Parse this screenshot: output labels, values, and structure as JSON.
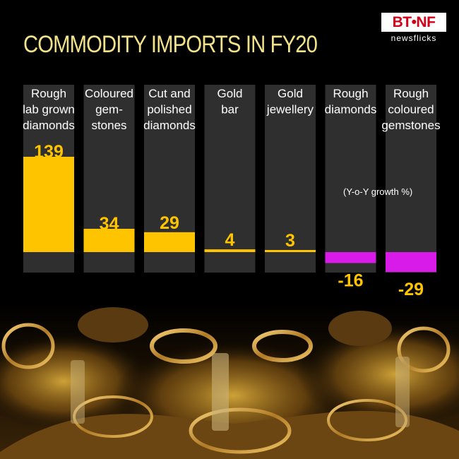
{
  "title": "COMMODITY IMPORTS IN FY20",
  "logo": {
    "brand": "BT•NF",
    "sub": "newsflicks"
  },
  "note": "(Y-o-Y growth %)",
  "colors": {
    "positive": "#FFC400",
    "negative": "#D81BE8",
    "column_bg": "#2f2f2f",
    "title": "#F2E38A"
  },
  "chart_data": {
    "type": "bar",
    "title": "COMMODITY IMPORTS IN FY20",
    "categories": [
      [
        "Rough",
        "lab grown",
        "diamonds"
      ],
      [
        "Coloured",
        "gem-",
        "stones"
      ],
      [
        "Cut and",
        "polished",
        "diamonds"
      ],
      [
        "Gold",
        "bar"
      ],
      [
        "Gold",
        "jewellery"
      ],
      [
        "Rough",
        "diamonds"
      ],
      [
        "Rough",
        "coloured",
        "gemstones"
      ]
    ],
    "values": [
      139,
      34,
      29,
      4,
      3,
      -16,
      -29
    ],
    "value_labels": [
      "139",
      "34",
      "29",
      "4",
      "3",
      "-16",
      "-29"
    ],
    "ylabel": "(Y-o-Y growth %)",
    "ylim": [
      -29,
      139
    ],
    "grid": false,
    "legend": "none"
  }
}
